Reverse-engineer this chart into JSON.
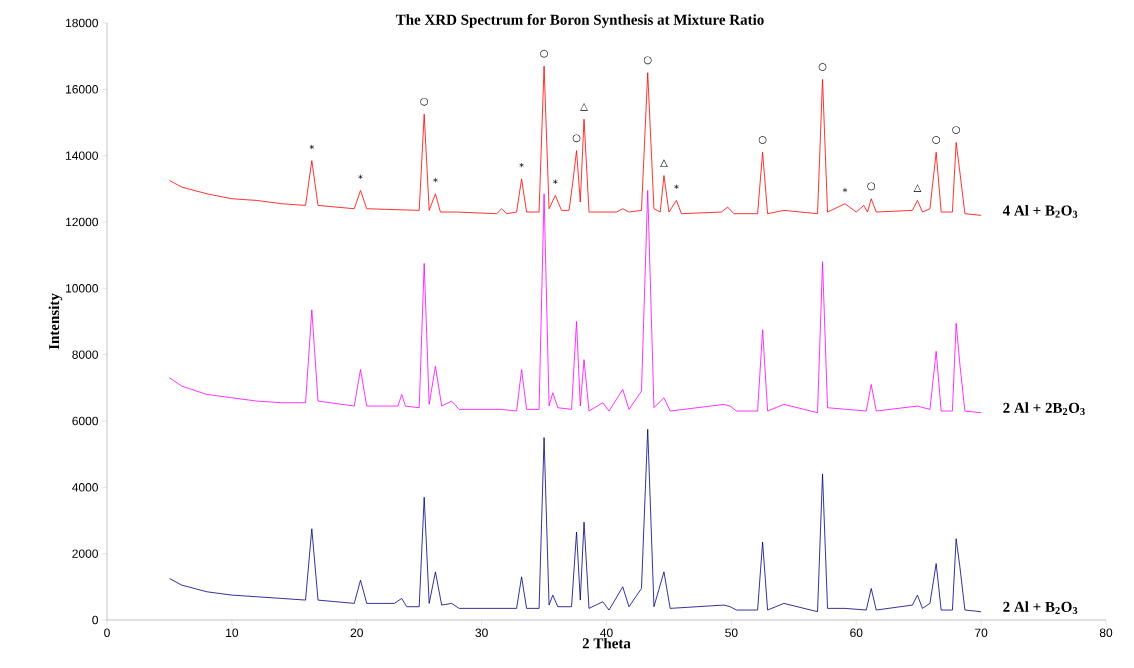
{
  "chart_data": {
    "type": "line",
    "title": "The XRD Spectrum for Boron Synthesis at Mixture Ratio",
    "xlabel": "2 Theta",
    "ylabel": "Intensity",
    "xlim": [
      0,
      80
    ],
    "ylim": [
      0,
      18000
    ],
    "xticks": [
      0,
      10,
      20,
      30,
      40,
      50,
      60,
      70,
      80
    ],
    "yticks": [
      0,
      2000,
      4000,
      6000,
      8000,
      10000,
      12000,
      14000,
      16000,
      18000
    ],
    "marker": "none",
    "series": [
      {
        "name": "4 Al + B$_{2}$O$_{3}$",
        "color": "#ff0000",
        "x": [
          5,
          6,
          8,
          10,
          12,
          14,
          15.9,
          16.4,
          16.9,
          19.8,
          20.3,
          20.8,
          25.0,
          25.4,
          25.8,
          26.3,
          26.7,
          28,
          31.2,
          31.6,
          32.0,
          32.8,
          33.2,
          33.6,
          34.6,
          35.0,
          35.4,
          35.9,
          36.4,
          37.0,
          37.3,
          37.6,
          37.9,
          38.2,
          38.6,
          40.8,
          41.3,
          41.8,
          42.8,
          43.3,
          43.8,
          44.3,
          44.6,
          45.0,
          45.6,
          46.0,
          49.2,
          49.7,
          50.2,
          52.1,
          52.5,
          52.9,
          54.2,
          56.9,
          57.3,
          57.7,
          59.1,
          60.0,
          60.6,
          60.9,
          61.2,
          61.6,
          64.5,
          64.9,
          65.3,
          65.9,
          66.4,
          66.8,
          67.7,
          68.0,
          68.3,
          68.7,
          70
        ],
        "values": [
          13250,
          13050,
          12850,
          12700,
          12650,
          12550,
          12500,
          13850,
          12500,
          12400,
          12950,
          12400,
          12350,
          15250,
          12350,
          12850,
          12300,
          12300,
          12250,
          12400,
          12250,
          12300,
          13300,
          12300,
          12300,
          16700,
          12400,
          12800,
          12350,
          12350,
          13200,
          14150,
          12600,
          15100,
          12300,
          12300,
          12400,
          12300,
          12350,
          16500,
          12400,
          12300,
          13400,
          12300,
          12650,
          12250,
          12300,
          12450,
          12250,
          12250,
          14100,
          12250,
          12350,
          12250,
          16300,
          12300,
          12550,
          12300,
          12500,
          12300,
          12700,
          12300,
          12350,
          12650,
          12300,
          12400,
          14100,
          12300,
          12300,
          14400,
          13500,
          12250,
          12200
        ]
      },
      {
        "name": "2 Al + 2B$_{2}$O$_{3}$",
        "color": "#ff00ff",
        "x": [
          5,
          6,
          8,
          10,
          12,
          14,
          15.9,
          16.4,
          16.9,
          19.8,
          20.3,
          20.8,
          23.3,
          23.6,
          23.9,
          25.0,
          25.4,
          25.8,
          26.3,
          26.8,
          27.6,
          28.2,
          31.6,
          32.8,
          33.2,
          33.6,
          34.6,
          35.0,
          35.4,
          35.7,
          36.1,
          37.2,
          37.6,
          37.9,
          38.2,
          38.6,
          39.7,
          40.2,
          41.3,
          41.8,
          42.8,
          43.3,
          43.8,
          44.6,
          45.1,
          49.4,
          49.9,
          50.4,
          52.1,
          52.5,
          52.9,
          54.2,
          56.9,
          57.3,
          57.7,
          60.8,
          61.2,
          61.6,
          64.9,
          65.9,
          66.4,
          66.8,
          67.7,
          68.0,
          68.3,
          68.7,
          70
        ],
        "values": [
          7300,
          7050,
          6800,
          6700,
          6600,
          6550,
          6550,
          9350,
          6600,
          6450,
          7550,
          6450,
          6450,
          6800,
          6450,
          6400,
          10750,
          6500,
          7650,
          6450,
          6600,
          6350,
          6350,
          6300,
          7550,
          6350,
          6350,
          12850,
          6450,
          6850,
          6400,
          6350,
          9000,
          6450,
          7850,
          6300,
          6550,
          6300,
          6950,
          6350,
          6900,
          12950,
          6400,
          6700,
          6300,
          6500,
          6450,
          6300,
          6300,
          8750,
          6300,
          6500,
          6250,
          10800,
          6400,
          6300,
          7100,
          6300,
          6450,
          6350,
          8100,
          6300,
          6300,
          8950,
          7700,
          6300,
          6250
        ]
      },
      {
        "name": "2 Al + B$_{2}$O$_{3}$",
        "color": "#000080",
        "x": [
          5,
          6,
          8,
          10,
          12,
          14,
          15.9,
          16.4,
          16.9,
          19.8,
          20.3,
          20.8,
          23.0,
          23.6,
          24.0,
          25.0,
          25.4,
          25.8,
          26.3,
          26.8,
          27.6,
          28.2,
          31.6,
          32.8,
          33.2,
          33.6,
          34.6,
          35.0,
          35.4,
          35.7,
          36.1,
          37.2,
          37.6,
          37.9,
          38.2,
          38.6,
          39.7,
          40.2,
          41.3,
          41.8,
          42.8,
          43.3,
          43.8,
          44.6,
          45.1,
          49.4,
          49.9,
          50.4,
          52.1,
          52.5,
          52.9,
          54.2,
          56.9,
          57.3,
          57.7,
          59.1,
          60.8,
          61.2,
          61.6,
          64.5,
          64.9,
          65.3,
          65.9,
          66.4,
          66.8,
          67.7,
          68.0,
          68.3,
          68.7,
          70
        ],
        "values": [
          1250,
          1050,
          850,
          750,
          700,
          650,
          600,
          2750,
          600,
          500,
          1200,
          500,
          500,
          650,
          400,
          400,
          3700,
          500,
          1450,
          450,
          500,
          350,
          350,
          350,
          1300,
          350,
          350,
          5500,
          450,
          750,
          400,
          400,
          2650,
          600,
          2950,
          350,
          550,
          300,
          1000,
          400,
          950,
          5750,
          400,
          1450,
          350,
          450,
          400,
          300,
          300,
          2350,
          300,
          500,
          250,
          4400,
          350,
          350,
          300,
          950,
          300,
          450,
          750,
          350,
          500,
          1700,
          300,
          300,
          2450,
          1600,
          300,
          250
        ]
      }
    ],
    "annotations": [
      {
        "text": "*",
        "x": 16.4,
        "y": 13850
      },
      {
        "text": "*",
        "x": 20.3,
        "y": 12950
      },
      {
        "text": "○",
        "x": 25.4,
        "y": 15250
      },
      {
        "text": "*",
        "x": 26.3,
        "y": 12850
      },
      {
        "text": "*",
        "x": 33.2,
        "y": 13300
      },
      {
        "text": "○",
        "x": 35.0,
        "y": 16700
      },
      {
        "text": "○",
        "x": 37.6,
        "y": 14150
      },
      {
        "text": "*",
        "x": 35.9,
        "y": 12800
      },
      {
        "text": "△",
        "x": 38.2,
        "y": 15100
      },
      {
        "text": "○",
        "x": 43.3,
        "y": 16500
      },
      {
        "text": "△",
        "x": 44.6,
        "y": 13400
      },
      {
        "text": "*",
        "x": 45.6,
        "y": 12650
      },
      {
        "text": "○",
        "x": 52.5,
        "y": 14100
      },
      {
        "text": "○",
        "x": 57.3,
        "y": 16300
      },
      {
        "text": "*",
        "x": 59.1,
        "y": 12550
      },
      {
        "text": "○",
        "x": 61.2,
        "y": 12700
      },
      {
        "text": "△",
        "x": 64.9,
        "y": 12650
      },
      {
        "text": "○",
        "x": 66.4,
        "y": 14100
      },
      {
        "text": "○",
        "x": 68.0,
        "y": 14400
      }
    ]
  }
}
